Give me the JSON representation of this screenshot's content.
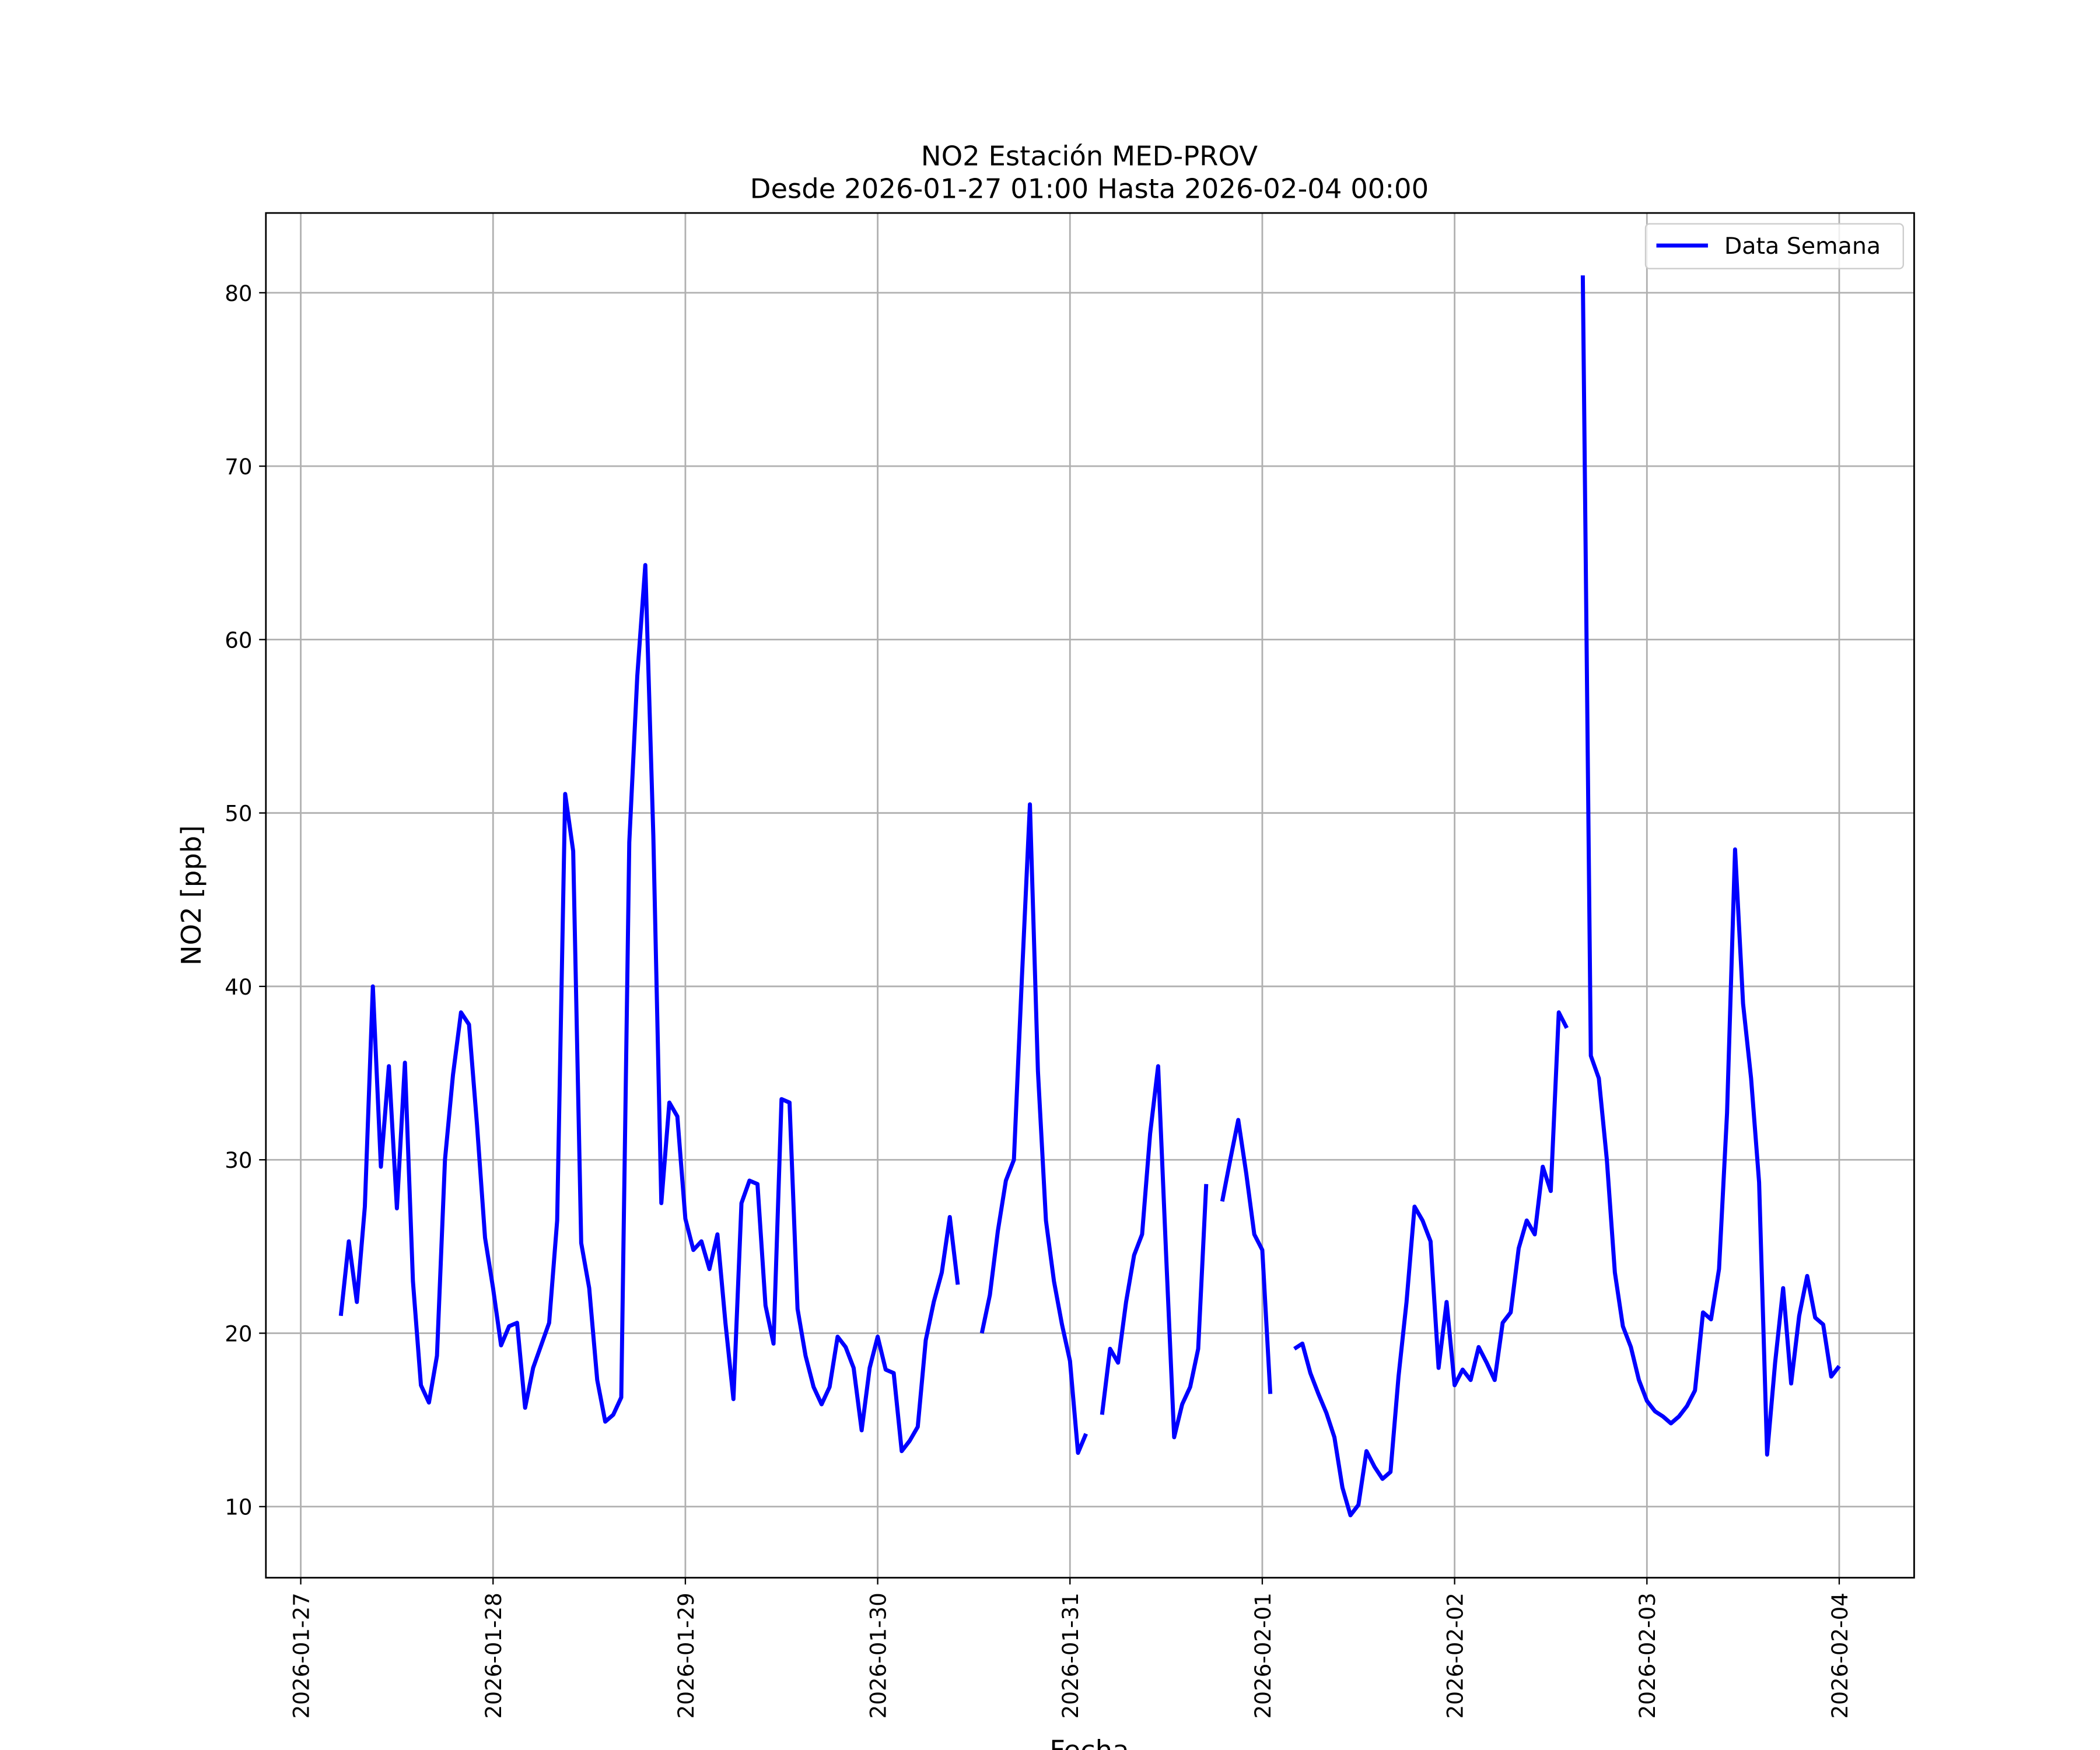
{
  "chart_data": {
    "type": "line",
    "title": "NO2 Estación MED-PROV",
    "subtitle": "Desde 2026-01-27 01:00 Hasta 2026-02-04 00:00",
    "xlabel": "Fecha",
    "ylabel": "NO2 [ppb]",
    "x": [
      "2026-01-27 01:00",
      "2026-01-27 02:00",
      "2026-01-27 03:00",
      "2026-01-27 04:00",
      "2026-01-27 05:00",
      "2026-01-27 06:00",
      "2026-01-27 07:00",
      "2026-01-27 08:00",
      "2026-01-27 09:00",
      "2026-01-27 10:00",
      "2026-01-27 11:00",
      "2026-01-27 12:00",
      "2026-01-27 13:00",
      "2026-01-27 14:00",
      "2026-01-27 15:00",
      "2026-01-27 16:00",
      "2026-01-27 17:00",
      "2026-01-27 18:00",
      "2026-01-27 19:00",
      "2026-01-27 20:00",
      "2026-01-27 21:00",
      "2026-01-27 22:00",
      "2026-01-27 23:00",
      "2026-01-28 00:00",
      "2026-01-28 01:00",
      "2026-01-28 02:00",
      "2026-01-28 03:00",
      "2026-01-28 04:00",
      "2026-01-28 05:00",
      "2026-01-28 06:00",
      "2026-01-28 07:00",
      "2026-01-28 08:00",
      "2026-01-28 09:00",
      "2026-01-28 10:00",
      "2026-01-28 11:00",
      "2026-01-28 12:00",
      "2026-01-28 13:00",
      "2026-01-28 14:00",
      "2026-01-28 15:00",
      "2026-01-28 16:00",
      "2026-01-28 17:00",
      "2026-01-28 18:00",
      "2026-01-28 19:00",
      "2026-01-28 20:00",
      "2026-01-28 21:00",
      "2026-01-28 22:00",
      "2026-01-28 23:00",
      "2026-01-29 00:00",
      "2026-01-29 01:00",
      "2026-01-29 02:00",
      "2026-01-29 03:00",
      "2026-01-29 04:00",
      "2026-01-29 05:00",
      "2026-01-29 06:00",
      "2026-01-29 07:00",
      "2026-01-29 08:00",
      "2026-01-29 09:00",
      "2026-01-29 10:00",
      "2026-01-29 11:00",
      "2026-01-29 12:00",
      "2026-01-29 13:00",
      "2026-01-29 14:00",
      "2026-01-29 15:00",
      "2026-01-29 16:00",
      "2026-01-29 17:00",
      "2026-01-29 18:00",
      "2026-01-29 19:00",
      "2026-01-29 20:00",
      "2026-01-29 21:00",
      "2026-01-29 22:00",
      "2026-01-29 23:00",
      "2026-01-30 00:00",
      "2026-01-30 01:00",
      "2026-01-30 02:00",
      "2026-01-30 03:00",
      "2026-01-30 04:00",
      "2026-01-30 05:00",
      "2026-01-30 06:00",
      "2026-01-30 07:00",
      "2026-01-30 08:00",
      "2026-01-30 09:00",
      "2026-01-30 10:00",
      "2026-01-30 11:00",
      "2026-01-30 12:00",
      "2026-01-30 13:00",
      "2026-01-30 14:00",
      "2026-01-30 15:00",
      "2026-01-30 16:00",
      "2026-01-30 17:00",
      "2026-01-30 18:00",
      "2026-01-30 19:00",
      "2026-01-30 20:00",
      "2026-01-30 21:00",
      "2026-01-30 22:00",
      "2026-01-30 23:00",
      "2026-01-31 00:00",
      "2026-01-31 01:00",
      "2026-01-31 02:00",
      "2026-01-31 03:00",
      "2026-01-31 04:00",
      "2026-01-31 05:00",
      "2026-01-31 06:00",
      "2026-01-31 07:00",
      "2026-01-31 08:00",
      "2026-01-31 09:00",
      "2026-01-31 10:00",
      "2026-01-31 11:00",
      "2026-01-31 12:00",
      "2026-01-31 13:00",
      "2026-01-31 14:00",
      "2026-01-31 15:00",
      "2026-01-31 16:00",
      "2026-01-31 17:00",
      "2026-01-31 18:00",
      "2026-01-31 19:00",
      "2026-01-31 20:00",
      "2026-01-31 21:00",
      "2026-01-31 22:00",
      "2026-01-31 23:00",
      "2026-02-01 00:00",
      "2026-02-01 01:00",
      "2026-02-01 02:00",
      "2026-02-01 03:00",
      "2026-02-01 04:00",
      "2026-02-01 05:00",
      "2026-02-01 06:00",
      "2026-02-01 07:00",
      "2026-02-01 08:00",
      "2026-02-01 09:00",
      "2026-02-01 10:00",
      "2026-02-01 11:00",
      "2026-02-01 12:00",
      "2026-02-01 13:00",
      "2026-02-01 14:00",
      "2026-02-01 15:00",
      "2026-02-01 16:00",
      "2026-02-01 17:00",
      "2026-02-01 18:00",
      "2026-02-01 19:00",
      "2026-02-01 20:00",
      "2026-02-01 21:00",
      "2026-02-01 22:00",
      "2026-02-01 23:00",
      "2026-02-02 00:00",
      "2026-02-02 01:00",
      "2026-02-02 02:00",
      "2026-02-02 03:00",
      "2026-02-02 04:00",
      "2026-02-02 05:00",
      "2026-02-02 06:00",
      "2026-02-02 07:00",
      "2026-02-02 08:00",
      "2026-02-02 09:00",
      "2026-02-02 10:00",
      "2026-02-02 11:00",
      "2026-02-02 12:00",
      "2026-02-02 13:00",
      "2026-02-02 14:00",
      "2026-02-02 15:00",
      "2026-02-02 16:00",
      "2026-02-02 17:00",
      "2026-02-02 18:00",
      "2026-02-02 19:00",
      "2026-02-02 20:00",
      "2026-02-02 21:00",
      "2026-02-02 22:00",
      "2026-02-02 23:00",
      "2026-02-03 00:00",
      "2026-02-03 01:00",
      "2026-02-03 02:00",
      "2026-02-03 03:00",
      "2026-02-03 04:00",
      "2026-02-03 05:00",
      "2026-02-03 06:00",
      "2026-02-03 07:00",
      "2026-02-03 08:00",
      "2026-02-03 09:00",
      "2026-02-03 10:00",
      "2026-02-03 11:00",
      "2026-02-03 12:00",
      "2026-02-03 13:00",
      "2026-02-03 14:00",
      "2026-02-03 15:00",
      "2026-02-03 16:00",
      "2026-02-03 17:00",
      "2026-02-03 18:00",
      "2026-02-03 19:00",
      "2026-02-03 20:00",
      "2026-02-03 21:00",
      "2026-02-03 22:00",
      "2026-02-03 23:00",
      "2026-02-04 00:00"
    ],
    "series": [
      {
        "name": "Data Semana",
        "color": "#0000ff",
        "values": [
          null,
          null,
          null,
          null,
          21.0,
          25.3,
          21.8,
          27.3,
          40.0,
          29.6,
          35.4,
          27.2,
          35.6,
          23.0,
          17.0,
          16.0,
          18.7,
          30.0,
          34.9,
          38.5,
          37.8,
          32.0,
          25.5,
          22.6,
          19.3,
          20.4,
          20.6,
          15.7,
          18.0,
          19.3,
          20.6,
          26.5,
          51.1,
          47.8,
          25.2,
          22.6,
          17.3,
          14.9,
          15.3,
          16.3,
          48.3,
          57.9,
          64.3,
          48.7,
          27.5,
          33.3,
          32.5,
          26.6,
          24.8,
          25.3,
          23.7,
          25.7,
          20.6,
          16.2,
          27.5,
          28.8,
          28.6,
          21.6,
          19.4,
          33.5,
          33.3,
          21.4,
          18.7,
          16.9,
          15.9,
          16.9,
          19.8,
          19.2,
          18.0,
          14.4,
          18.0,
          19.8,
          17.9,
          17.7,
          13.2,
          13.8,
          14.6,
          19.6,
          21.8,
          23.5,
          26.7,
          22.8,
          null,
          null,
          20.0,
          22.2,
          25.9,
          28.8,
          30.0,
          40.5,
          50.5,
          35.1,
          26.5,
          23.0,
          20.5,
          18.4,
          13.1,
          14.2,
          null,
          15.3,
          19.1,
          18.3,
          21.8,
          24.5,
          25.7,
          31.5,
          35.4,
          24.5,
          14.0,
          15.9,
          16.9,
          19.1,
          28.6,
          null,
          27.6,
          30.0,
          32.3,
          29.2,
          25.7,
          24.8,
          16.5,
          null,
          null,
          19.1,
          19.4,
          17.7,
          16.5,
          15.4,
          14.0,
          11.1,
          9.5,
          10.1,
          13.2,
          12.3,
          11.6,
          12.0,
          17.5,
          21.8,
          27.3,
          26.5,
          25.3,
          18.0,
          21.8,
          17.0,
          17.9,
          17.3,
          19.2,
          18.3,
          17.3,
          20.6,
          21.2,
          24.9,
          26.5,
          25.7,
          29.6,
          28.2,
          38.5,
          37.6,
          null,
          81.0,
          36.0,
          34.7,
          30.0,
          23.5,
          20.4,
          19.2,
          17.3,
          16.1,
          15.5,
          15.2,
          14.8,
          15.2,
          15.8,
          16.7,
          21.2,
          20.8,
          23.7,
          32.7,
          47.9,
          39.0,
          34.7,
          28.7,
          13.0,
          18.3,
          22.6,
          17.1,
          21.0,
          23.3,
          20.9,
          20.5,
          17.5,
          18.1
        ]
      }
    ],
    "xlim": [
      "2026-01-26 19:39",
      "2026-02-04 09:21"
    ],
    "xticks": [
      "2026-01-27",
      "2026-01-28",
      "2026-01-29",
      "2026-01-30",
      "2026-01-31",
      "2026-02-01",
      "2026-02-02",
      "2026-02-03",
      "2026-02-04"
    ],
    "ylim": [
      5.9,
      84.6
    ],
    "yticks": [
      10,
      20,
      30,
      40,
      50,
      60,
      70,
      80
    ],
    "grid": true,
    "legend": "upper right"
  }
}
